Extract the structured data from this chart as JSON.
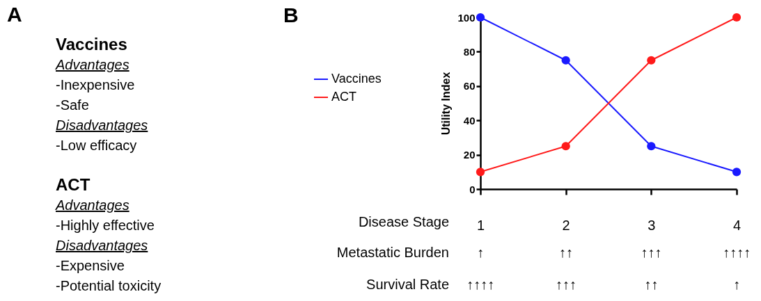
{
  "chart_data": [
    {
      "type": "other",
      "title": "A",
      "annotations": [
        "Vaccines",
        "Advantages",
        "-Inexpensive",
        "-Safe",
        "Disadvantages",
        "-Low efficacy",
        "ACT",
        "Advantages",
        "-Highly effective",
        "Disadvantages",
        "-Expensive",
        "-Potential toxicity"
      ]
    },
    {
      "type": "line",
      "xlabel": "Disease Stage",
      "ylabel": "Utility Index",
      "categories": [
        "1",
        "2",
        "3",
        "4"
      ],
      "series": [
        {
          "name": "Vaccines",
          "color": "#1a1aff",
          "values": [
            100,
            75,
            25,
            10
          ]
        },
        {
          "name": "ACT",
          "color": "#ff1a1a",
          "values": [
            10,
            25,
            75,
            100
          ]
        }
      ],
      "ylim": [
        0,
        100
      ],
      "yticks": [
        0,
        20,
        40,
        60,
        80,
        100
      ],
      "grid": false,
      "legend": "left",
      "marker": "circle",
      "line_style": "solid",
      "annotations": [
        "B",
        "Metastatic Burden",
        "↑",
        "↑↑",
        "↑↑↑",
        "↑↑↑↑",
        "Survival Rate",
        "↑↑↑↑",
        "↑↑↑",
        "↑↑",
        "↑"
      ]
    }
  ]
}
